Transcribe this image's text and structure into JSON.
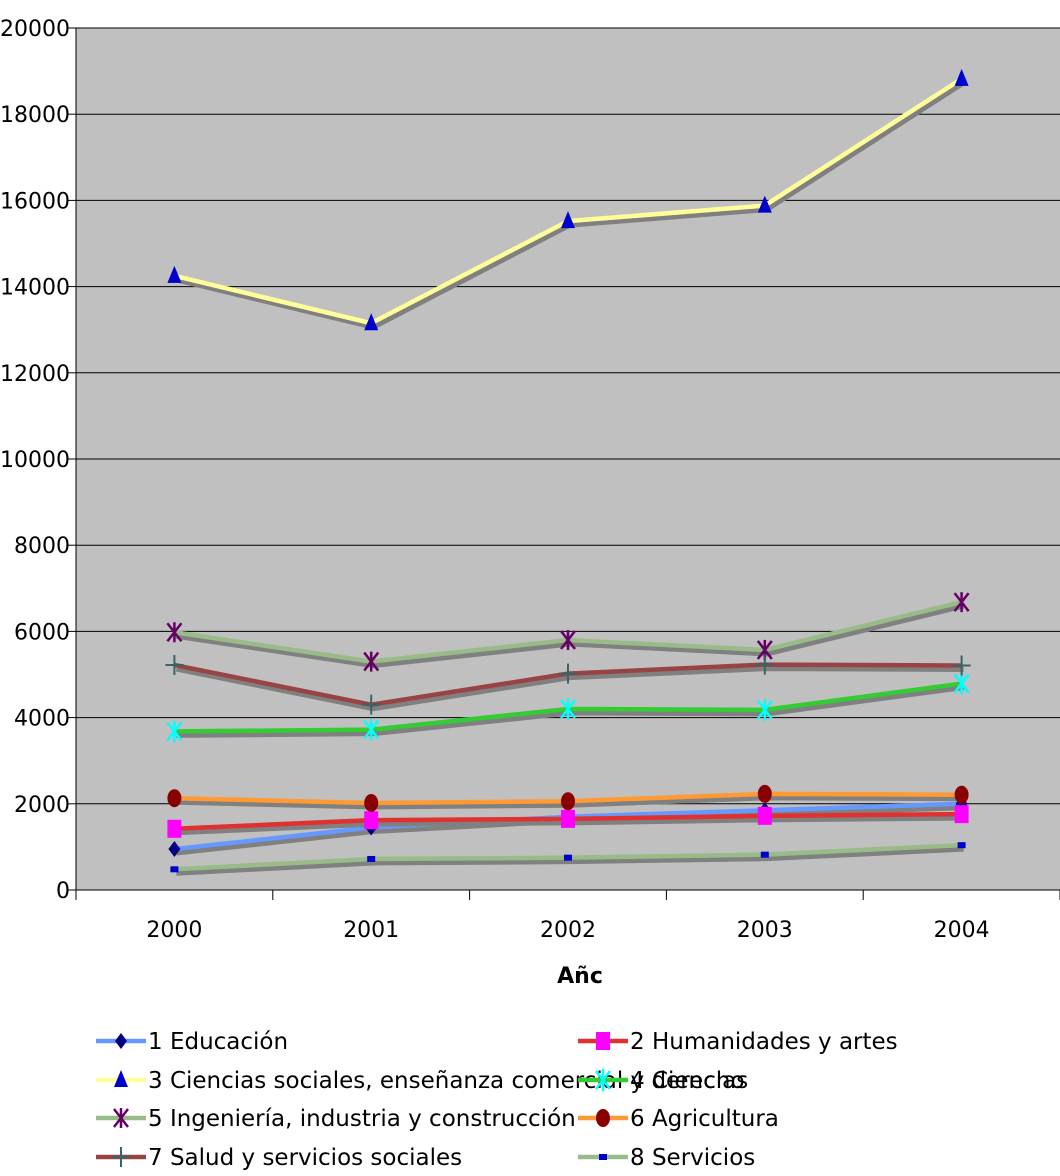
{
  "chart_data": {
    "type": "line",
    "title": "",
    "xlabel": "Añc",
    "ylabel": "",
    "categories": [
      "2000",
      "2001",
      "2002",
      "2003",
      "2004"
    ],
    "ylim": [
      0,
      20000
    ],
    "yticks": [
      0,
      2000,
      4000,
      6000,
      8000,
      10000,
      12000,
      14000,
      16000,
      18000,
      20000
    ],
    "grid": "horizontal",
    "plot_background": "#c0c0c0",
    "legend_position": "bottom",
    "series": [
      {
        "name": "1 Educación",
        "values": [
          950,
          1450,
          1700,
          1850,
          2000
        ],
        "color": "#6699ff",
        "marker": "diamond",
        "marker_color": "#000080"
      },
      {
        "name": "2 Humanidades y artes",
        "values": [
          1420,
          1620,
          1650,
          1720,
          1760
        ],
        "color": "#e03030",
        "marker": "square",
        "marker_color": "#ff00ff"
      },
      {
        "name": "3 Ciencias sociales, enseñanza comercial y derecho",
        "values": [
          14250,
          13150,
          15520,
          15880,
          18820
        ],
        "color": "#ffff99",
        "marker": "triangle",
        "marker_color": "#0000cc"
      },
      {
        "name": "4 Ciencias",
        "values": [
          3680,
          3720,
          4200,
          4180,
          4790
        ],
        "color": "#33cc33",
        "marker": "star",
        "marker_color": "#00ffff"
      },
      {
        "name": "5 Ingeniería, industria y construcción",
        "values": [
          5980,
          5300,
          5800,
          5570,
          6680
        ],
        "color": "#99bb88",
        "marker": "asterisk",
        "marker_color": "#660066"
      },
      {
        "name": "6 Agricultura",
        "values": [
          2130,
          2020,
          2060,
          2230,
          2210
        ],
        "color": "#ff9933",
        "marker": "circle",
        "marker_color": "#880000"
      },
      {
        "name": "7 Salud y servicios sociales",
        "values": [
          5220,
          4300,
          5020,
          5230,
          5210
        ],
        "color": "#994444",
        "marker": "plus",
        "marker_color": "#336666"
      },
      {
        "name": "8 Servicios",
        "values": [
          480,
          720,
          750,
          820,
          1040
        ],
        "color": "#99bb88",
        "marker": "dash",
        "marker_color": "#0000cc"
      }
    ]
  }
}
